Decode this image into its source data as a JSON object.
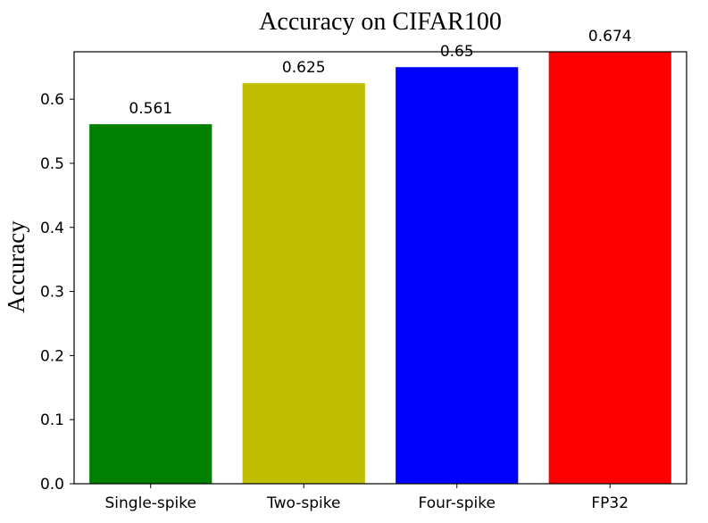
{
  "chart_data": {
    "type": "bar",
    "title": "Accuracy on CIFAR100",
    "xlabel": "",
    "ylabel": "Accuracy",
    "categories": [
      "Single-spike",
      "Two-spike",
      "Four-spike",
      "FP32"
    ],
    "values": [
      0.561,
      0.625,
      0.65,
      0.674
    ],
    "value_labels": [
      "0.561",
      "0.625",
      "0.65",
      "0.674"
    ],
    "colors": [
      "#008000",
      "#bfbf00",
      "#0000ff",
      "#ff0000"
    ],
    "ylim": [
      0,
      0.674
    ],
    "yticks": [
      0.0,
      0.1,
      0.2,
      0.3,
      0.4,
      0.5,
      0.6
    ],
    "ytick_labels": [
      "0.0",
      "0.1",
      "0.2",
      "0.3",
      "0.4",
      "0.5",
      "0.6"
    ],
    "grid": false,
    "legend": "none"
  }
}
